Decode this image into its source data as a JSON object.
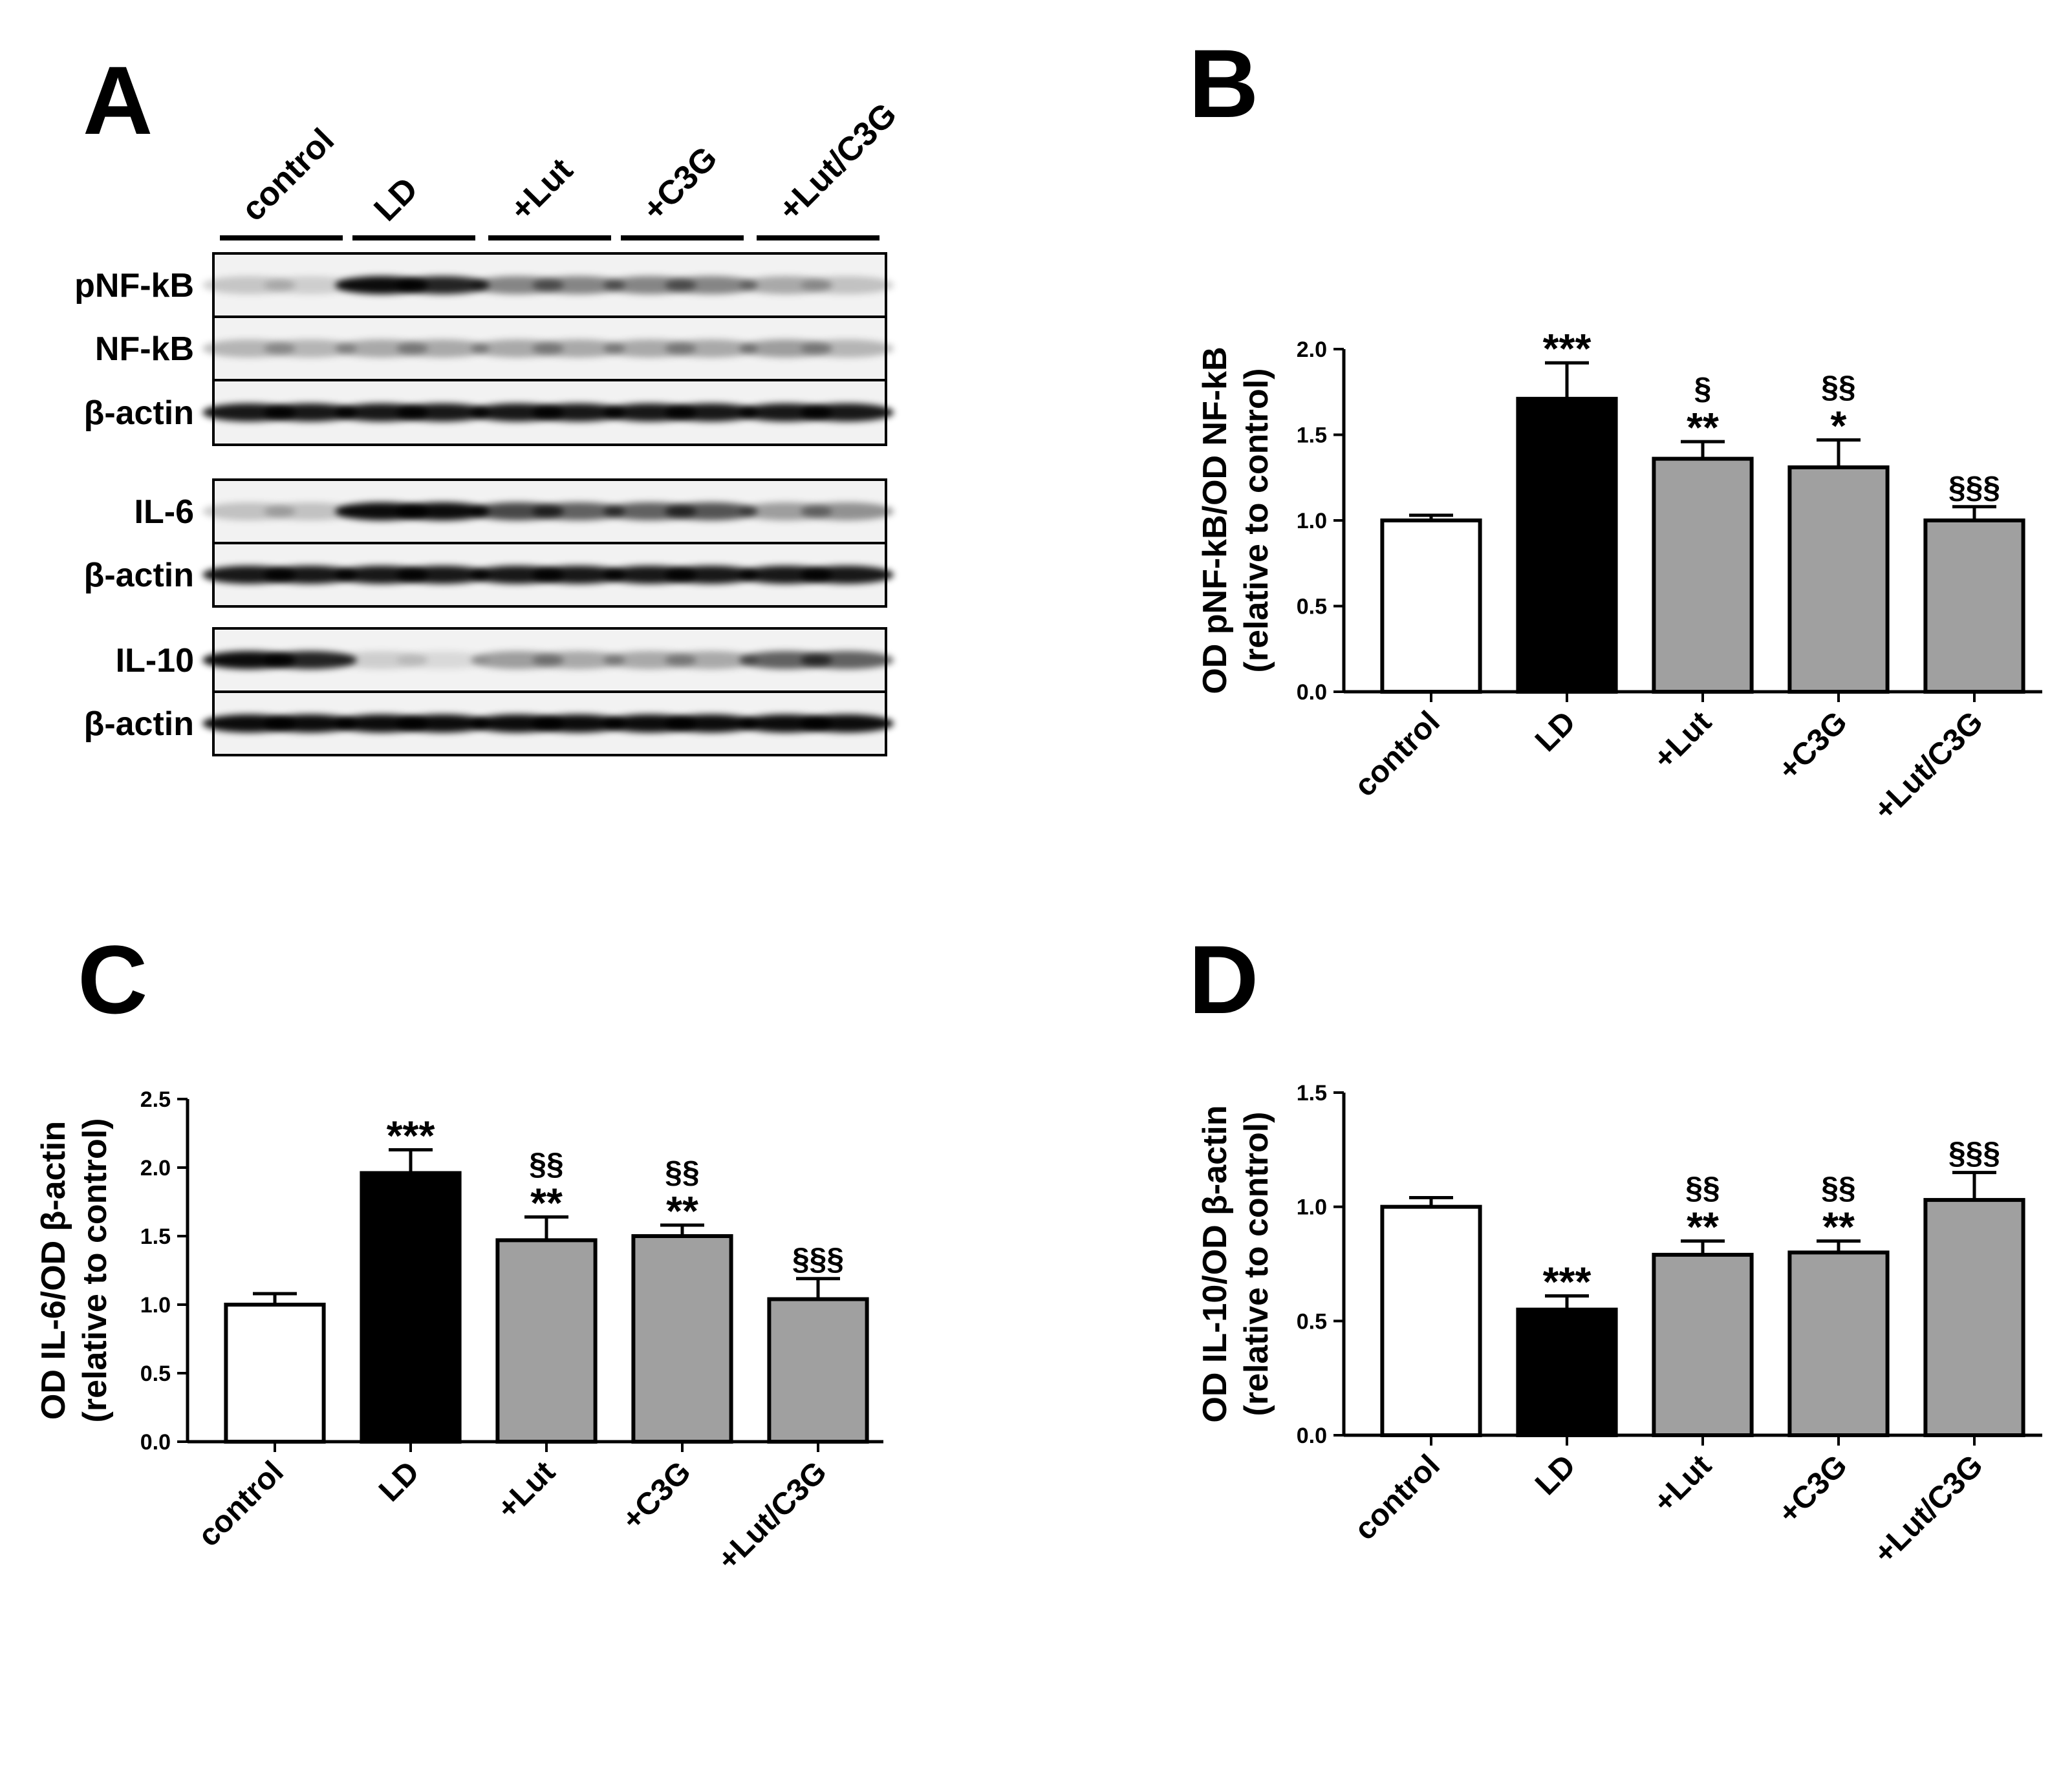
{
  "panels": {
    "A": "A",
    "B": "B",
    "C": "C",
    "D": "D"
  },
  "western_blot": {
    "groups": [
      "control",
      "LD",
      "+Lut",
      "+C3G",
      "+Lut/C3G"
    ],
    "blocks": [
      {
        "rows": [
          "pNF-kB",
          "NF-kB",
          "β-actin"
        ]
      },
      {
        "rows": [
          "IL-6",
          "β-actin"
        ]
      },
      {
        "rows": [
          "IL-10",
          "β-actin"
        ]
      }
    ]
  },
  "colors": {
    "control": "#ffffff",
    "LD": "#000000",
    "treatment": "#a0a0a0",
    "outline": "#000000"
  },
  "chart_data": [
    {
      "panel": "B",
      "type": "bar",
      "categories": [
        "control",
        "LD",
        "+Lut",
        "+C3G",
        "+Lut/C3G"
      ],
      "values": [
        1.0,
        1.71,
        1.36,
        1.31,
        1.0
      ],
      "errors": [
        0.03,
        0.21,
        0.1,
        0.16,
        0.08
      ],
      "annotations": [
        [],
        [
          "***"
        ],
        [
          "**",
          "§"
        ],
        [
          "*",
          "§§"
        ],
        [
          "§§§"
        ]
      ],
      "ylabel": [
        "OD pNF-kB/OD NF-kB",
        "(relative to control)"
      ],
      "yticks": [
        "0.0",
        "0.5",
        "1.0",
        "1.5",
        "2.0"
      ],
      "ylim": [
        0,
        2.0
      ]
    },
    {
      "panel": "C",
      "type": "bar",
      "categories": [
        "control",
        "LD",
        "+Lut",
        "+C3G",
        "+Lut/C3G"
      ],
      "values": [
        1.0,
        1.96,
        1.47,
        1.5,
        1.04
      ],
      "errors": [
        0.08,
        0.17,
        0.17,
        0.08,
        0.15
      ],
      "annotations": [
        [],
        [
          "***"
        ],
        [
          "**",
          "§§"
        ],
        [
          "**",
          "§§"
        ],
        [
          "§§§"
        ]
      ],
      "ylabel": [
        "OD IL-6/OD β-actin",
        "(relative to control)"
      ],
      "yticks": [
        "0.0",
        "0.5",
        "1.0",
        "1.5",
        "2.0",
        "2.5"
      ],
      "ylim": [
        0,
        2.5
      ]
    },
    {
      "panel": "D",
      "type": "bar",
      "categories": [
        "control",
        "LD",
        "+Lut",
        "+C3G",
        "+Lut/C3G"
      ],
      "values": [
        1.0,
        0.55,
        0.79,
        0.8,
        1.03
      ],
      "errors": [
        0.04,
        0.06,
        0.06,
        0.05,
        0.12
      ],
      "annotations": [
        [],
        [
          "***"
        ],
        [
          "**",
          "§§"
        ],
        [
          "**",
          "§§"
        ],
        [
          "§§§"
        ]
      ],
      "ylabel": [
        "OD IL-10/OD β-actin",
        "(relative to control)"
      ],
      "yticks": [
        "0.0",
        "0.5",
        "1.0",
        "1.5"
      ],
      "ylim": [
        0,
        1.5
      ]
    }
  ]
}
